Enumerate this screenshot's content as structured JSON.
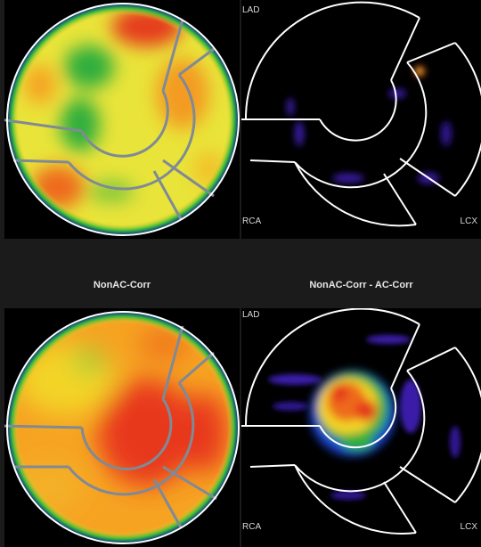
{
  "captions": {
    "left": "NonAC-Corr",
    "right": "NonAC-Corr - AC-Corr"
  },
  "territory_labels": {
    "lad": "LAD",
    "rca": "RCA",
    "lcx": "LCX"
  },
  "colors": {
    "background": "#1b1b1b",
    "panel": "#000000",
    "caption_text": "#e6e6e6",
    "divider_gray": "#7f8a96",
    "divider_white": "#ffffff"
  }
}
